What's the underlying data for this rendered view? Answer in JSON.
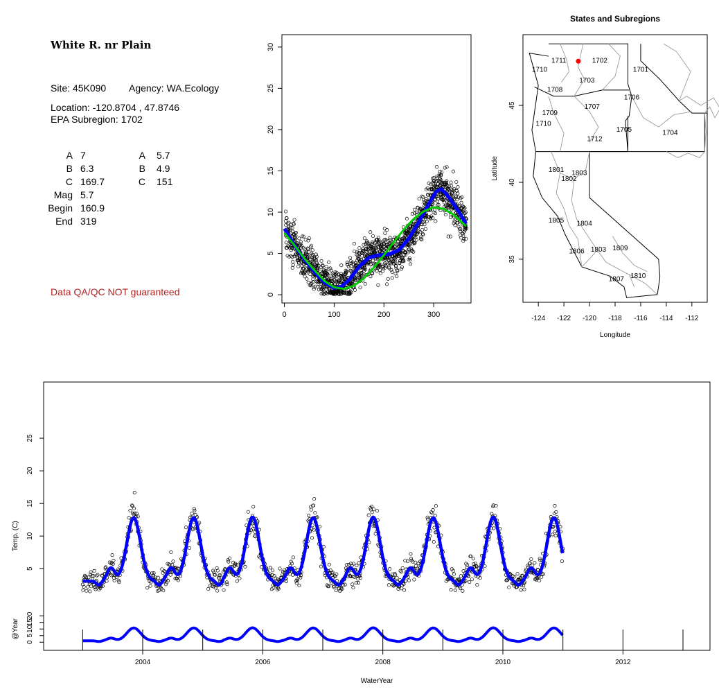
{
  "site": {
    "title": "White R. nr Plain",
    "site_line": "Site: 45K090",
    "agency_line": "Agency: WA.Ecology",
    "location_line": "Location: -120.8704 , 47.8746",
    "subregion_line": "EPA Subregion: 1702",
    "params_left": [
      {
        "label": "A",
        "value": "7"
      },
      {
        "label": "B",
        "value": "6.3"
      },
      {
        "label": "C",
        "value": "169.7"
      },
      {
        "label": "Mag",
        "value": "5.7"
      },
      {
        "label": "Begin",
        "value": "160.9"
      },
      {
        "label": "End",
        "value": "319"
      }
    ],
    "params_right": [
      {
        "label": "A",
        "value": "5.7"
      },
      {
        "label": "B",
        "value": "4.9"
      },
      {
        "label": "C",
        "value": "151"
      }
    ],
    "qaqc_note": "Data QA/QC NOT guaranteed"
  },
  "chart_data": [
    {
      "id": "annual",
      "type": "scatter",
      "title": "",
      "xlabel": "",
      "ylabel": "",
      "xlim": [
        -5,
        375
      ],
      "ylim": [
        -1,
        31.5
      ],
      "xticks": [
        0,
        100,
        200,
        300
      ],
      "yticks": [
        0,
        5,
        10,
        15,
        20,
        25,
        30
      ],
      "points_model": {
        "day_min": 2,
        "day_max": 365,
        "mean": 6.1,
        "amp": 5.2,
        "phase_day": 105,
        "noise": 1.2
      },
      "series": [
        {
          "name": "",
          "kind": "points",
          "color": "#000000"
        },
        {
          "name": "",
          "kind": "line",
          "color": "#0000ff",
          "x": [
            0,
            20,
            40,
            60,
            80,
            100,
            115,
            130,
            150,
            170,
            190,
            210,
            230,
            250,
            270,
            290,
            305,
            315,
            325,
            340,
            355,
            365
          ],
          "y": [
            8.0,
            6.0,
            4.3,
            2.8,
            1.5,
            0.8,
            1.0,
            1.8,
            3.4,
            4.5,
            4.8,
            4.9,
            5.4,
            6.8,
            8.8,
            11.0,
            12.5,
            12.8,
            12.2,
            11.0,
            9.6,
            8.6
          ]
        },
        {
          "name": "",
          "kind": "line",
          "color": "#00cc00",
          "x": [
            0,
            20,
            40,
            60,
            80,
            100,
            120,
            140,
            160,
            180,
            200,
            220,
            240,
            260,
            280,
            300,
            320,
            340,
            365
          ],
          "y": [
            7.5,
            6.0,
            4.4,
            3.0,
            1.7,
            0.9,
            0.7,
            1.1,
            2.0,
            3.3,
            4.8,
            6.4,
            7.9,
            9.2,
            10.1,
            10.6,
            10.4,
            9.7,
            8.3
          ]
        }
      ]
    },
    {
      "id": "map",
      "type": "map",
      "title": "States and Subregions",
      "xlabel": "Longitude",
      "ylabel": "Latitude",
      "xlim": [
        -125.2,
        -110.8
      ],
      "ylim": [
        32.2,
        49.6
      ],
      "xticks": [
        -124,
        -122,
        -120,
        -118,
        -116,
        -114,
        -112
      ],
      "yticks": [
        35,
        40,
        45
      ],
      "site_point": {
        "lon": -120.8704,
        "lat": 47.8746,
        "color": "#ff0000"
      },
      "region_labels": [
        {
          "text": "1702",
          "lon": -119.2,
          "lat": 47.9
        },
        {
          "text": "1701",
          "lon": -116.0,
          "lat": 47.3
        },
        {
          "text": "1711",
          "lon": -122.4,
          "lat": 47.9
        },
        {
          "text": "1710",
          "lon": -123.9,
          "lat": 47.3
        },
        {
          "text": "1703",
          "lon": -120.2,
          "lat": 46.6
        },
        {
          "text": "1708",
          "lon": -122.7,
          "lat": 46.0
        },
        {
          "text": "1706",
          "lon": -116.7,
          "lat": 45.5
        },
        {
          "text": "1707",
          "lon": -119.8,
          "lat": 44.9
        },
        {
          "text": "1709",
          "lon": -123.1,
          "lat": 44.5
        },
        {
          "text": "1710",
          "lon": -123.6,
          "lat": 43.8
        },
        {
          "text": "1705",
          "lon": -117.3,
          "lat": 43.4
        },
        {
          "text": "1704",
          "lon": -113.7,
          "lat": 43.2
        },
        {
          "text": "1712",
          "lon": -119.6,
          "lat": 42.8
        },
        {
          "text": "1801",
          "lon": -122.6,
          "lat": 40.8
        },
        {
          "text": "1803",
          "lon": -120.8,
          "lat": 40.6
        },
        {
          "text": "1802",
          "lon": -121.6,
          "lat": 40.2
        },
        {
          "text": "1805",
          "lon": -122.6,
          "lat": 37.5
        },
        {
          "text": "1804",
          "lon": -120.4,
          "lat": 37.3
        },
        {
          "text": "1806",
          "lon": -121.0,
          "lat": 35.5
        },
        {
          "text": "1803",
          "lon": -119.3,
          "lat": 35.6
        },
        {
          "text": "1809",
          "lon": -117.6,
          "lat": 35.7
        },
        {
          "text": "1807",
          "lon": -117.9,
          "lat": 33.7
        },
        {
          "text": "1810",
          "lon": -116.2,
          "lat": 33.9
        }
      ]
    },
    {
      "id": "timeseries",
      "type": "scatter",
      "title": "",
      "xlabel": "WaterYear",
      "ylabel": "Temp. (C)",
      "xlim": [
        2002.35,
        2013.45
      ],
      "ylim": [
        -0.5,
        30
      ],
      "xticks": [
        2004,
        2006,
        2008,
        2010,
        2012
      ],
      "yticks": [
        5,
        10,
        15,
        20,
        25
      ],
      "x_start": 2003.0,
      "x_end": 2011.0,
      "peak_x": [
        2003.85,
        2004.85,
        2005.83,
        2006.84,
        2007.84,
        2008.84,
        2009.84,
        2010.85
      ],
      "peak_y": [
        12.5,
        12.5,
        12.6,
        12.5,
        12.6,
        12.5,
        12.6,
        12.5
      ],
      "points_model": {
        "mean": 6.8,
        "amp": 5.8,
        "noise": 1.1
      },
      "series": [
        {
          "name": "",
          "kind": "points",
          "color": "#000000"
        },
        {
          "name": "",
          "kind": "line",
          "color": "#0000ff"
        }
      ]
    },
    {
      "id": "anomaly",
      "type": "line",
      "title": "",
      "xlabel": "",
      "ylabel": "@Year",
      "xlim": [
        2002.35,
        2013.45
      ],
      "ylim": [
        -3,
        28
      ],
      "yticks": [
        0,
        5,
        10,
        15,
        20
      ],
      "year_ticks": [
        2003,
        2004,
        2005,
        2006,
        2007,
        2008,
        2009,
        2010,
        2011,
        2012,
        2013
      ],
      "series": [
        {
          "name": "",
          "color": "#0000ff"
        }
      ]
    }
  ]
}
